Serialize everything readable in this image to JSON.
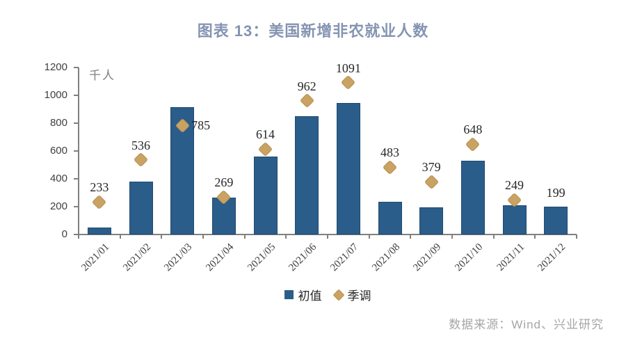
{
  "header": {
    "title": "图表 13：美国新增非农就业人数"
  },
  "chart_data": {
    "type": "bar",
    "subtype": "bar-with-diamond-markers",
    "title": "图表 13：美国新增非农就业人数",
    "unit_label": "千人",
    "categories": [
      "2021/01",
      "2021/02",
      "2021/03",
      "2021/04",
      "2021/05",
      "2021/06",
      "2021/07",
      "2021/08",
      "2021/09",
      "2021/10",
      "2021/11",
      "2021/12"
    ],
    "series": [
      {
        "name": "初值",
        "type": "bar",
        "color": "#2b5d8b",
        "values": [
          49,
          379,
          916,
          266,
          559,
          850,
          943,
          235,
          194,
          531,
          210,
          199
        ]
      },
      {
        "name": "季调",
        "type": "scatter",
        "marker": "diamond",
        "color": "#c9a264",
        "values": [
          233,
          536,
          785,
          269,
          614,
          962,
          1091,
          483,
          379,
          648,
          249,
          null
        ]
      }
    ],
    "point_labels": [
      {
        "text": "233",
        "placement": "above-marker"
      },
      {
        "text": "536",
        "placement": "above-marker"
      },
      {
        "text": "785",
        "placement": "right-of-marker"
      },
      {
        "text": "269",
        "placement": "above-marker"
      },
      {
        "text": "614",
        "placement": "above-marker"
      },
      {
        "text": "962",
        "placement": "above-marker"
      },
      {
        "text": "1091",
        "placement": "above-marker"
      },
      {
        "text": "483",
        "placement": "above-marker"
      },
      {
        "text": "379",
        "placement": "above-marker"
      },
      {
        "text": "648",
        "placement": "above-marker"
      },
      {
        "text": "249",
        "placement": "above-marker"
      },
      {
        "text": "199",
        "placement": "above-bar"
      }
    ],
    "xlabel": "",
    "ylabel": "千人",
    "ylim": [
      0,
      1200
    ],
    "yticks": [
      0,
      200,
      400,
      600,
      800,
      1000,
      1200
    ],
    "grid": false,
    "legend_position": "bottom-center",
    "colors": {
      "bar": "#2b5d8b",
      "bar_border": "#1e4a70",
      "diamond": "#c9a264",
      "axis": "#808080",
      "title": "#8494b2",
      "tick_label": "#3f3f3f",
      "data_label": "#262626"
    }
  },
  "footer": {
    "source": "数据来源：Wind、兴业研究"
  }
}
